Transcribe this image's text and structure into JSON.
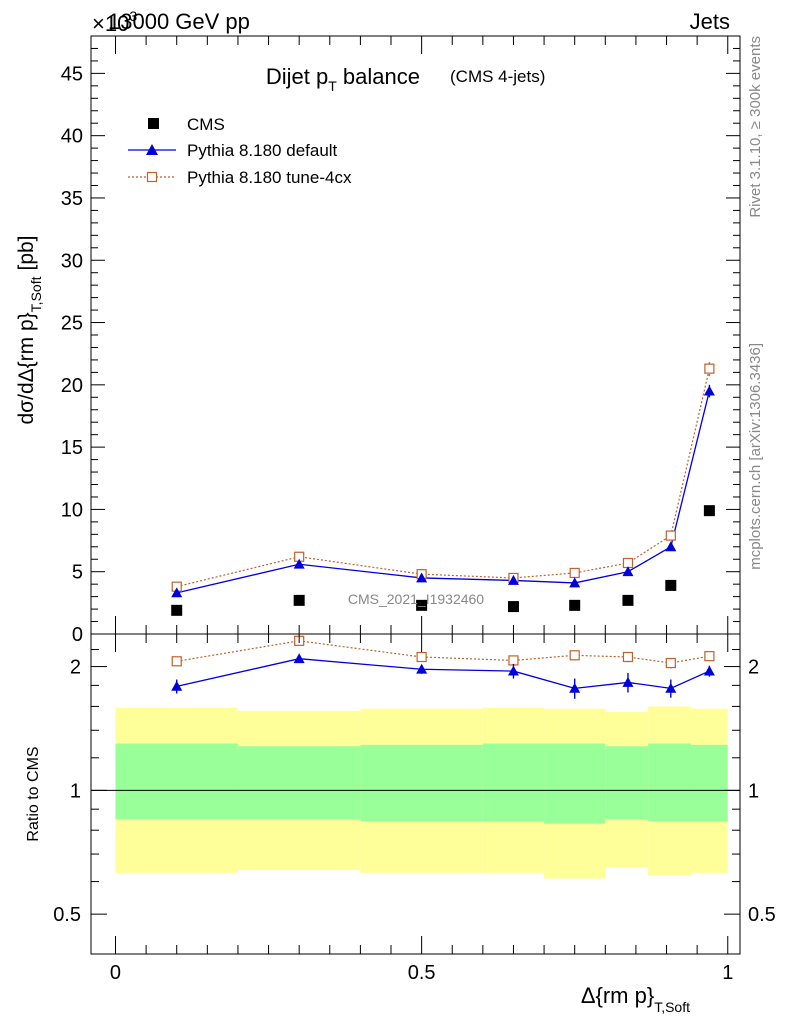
{
  "header": {
    "energy_label": "13000 GeV pp",
    "category_label": "Jets",
    "scale_label": "×10",
    "scale_exponent": "3"
  },
  "side_labels": {
    "rivet": "Rivet 3.1.10, ≥ 300k events",
    "mcplots": "mcplots.cern.ch [arXiv:1306.3436]"
  },
  "chart_data": [
    {
      "type": "scatter",
      "title_main": "Dijet p",
      "title_sub": "T",
      "title_rest": " balance",
      "title_note": "(CMS 4-jets)",
      "watermark": "CMS_2021_I1932460",
      "ylabel_main": "dσ/dΔ{rm p}",
      "ylabel_sub": "T,Soft",
      "ylabel_unit": "[pb]",
      "xlim": [
        -0.04,
        1.02
      ],
      "ylim": [
        0,
        48
      ],
      "yticks": [
        0,
        5,
        10,
        15,
        20,
        25,
        30,
        35,
        40,
        45
      ],
      "legend_position": "top-left",
      "x": [
        0.1,
        0.3,
        0.5,
        0.65,
        0.75,
        0.837,
        0.907,
        0.97
      ],
      "series": [
        {
          "name": "CMS",
          "style": "marker",
          "marker": "square",
          "color": "#000000",
          "values": [
            1.9,
            2.7,
            2.3,
            2.2,
            2.3,
            2.7,
            3.9,
            9.9
          ]
        },
        {
          "name": "Pythia 8.180 default",
          "style": "line",
          "marker": "triangle",
          "color": "#0000dd",
          "values": [
            3.3,
            5.6,
            4.5,
            4.3,
            4.1,
            5.0,
            7.0,
            19.5
          ],
          "errors": [
            0.15,
            0.15,
            0.15,
            0.15,
            0.15,
            0.2,
            0.25,
            0.5
          ]
        },
        {
          "name": "Pythia 8.180 tune-4cx",
          "style": "dotted",
          "marker": "open-square",
          "color": "#c0622d",
          "values": [
            3.8,
            6.2,
            4.8,
            4.5,
            4.9,
            5.7,
            7.9,
            21.3
          ],
          "errors": [
            0.15,
            0.15,
            0.15,
            0.15,
            0.15,
            0.2,
            0.3,
            0.6
          ]
        }
      ]
    },
    {
      "type": "scatter",
      "ylabel": "Ratio to CMS",
      "xlabel_main": "Δ{rm p}",
      "xlabel_sub": "T,Soft",
      "log_y": true,
      "ylim": [
        0.4,
        2.4
      ],
      "yticks": [
        0.5,
        1,
        2
      ],
      "ytick_labels": [
        "0.5",
        "1",
        "2"
      ],
      "xticks": [
        0,
        0.5,
        1
      ],
      "xtick_labels": [
        "0",
        "0.5",
        "1"
      ],
      "reference_line": 1,
      "bin_edges": [
        0,
        0.2,
        0.4,
        0.6,
        0.7,
        0.8,
        0.87,
        0.94,
        1.0
      ],
      "bands": {
        "yellow": {
          "color": "#ffff99",
          "lower": [
            0.63,
            0.64,
            0.63,
            0.63,
            0.61,
            0.65,
            0.62,
            0.63
          ],
          "upper": [
            1.59,
            1.56,
            1.58,
            1.59,
            1.58,
            1.55,
            1.6,
            1.58
          ]
        },
        "green": {
          "color": "#99ff99",
          "lower": [
            0.85,
            0.85,
            0.84,
            0.84,
            0.83,
            0.85,
            0.84,
            0.84
          ],
          "upper": [
            1.3,
            1.28,
            1.29,
            1.3,
            1.3,
            1.28,
            1.3,
            1.29
          ]
        }
      },
      "x": [
        0.1,
        0.3,
        0.5,
        0.65,
        0.75,
        0.837,
        0.907,
        0.97
      ],
      "series": [
        {
          "name": "Pythia 8.180 default",
          "style": "line",
          "marker": "triangle",
          "color": "#0000dd",
          "values": [
            1.79,
            2.09,
            1.97,
            1.95,
            1.77,
            1.83,
            1.77,
            1.95
          ],
          "errors": [
            0.07,
            0.05,
            0.05,
            0.08,
            0.1,
            0.1,
            0.09,
            0.06
          ]
        },
        {
          "name": "Pythia 8.180 tune-4cx",
          "style": "dotted",
          "marker": "open-square",
          "color": "#c0622d",
          "values": [
            2.06,
            2.31,
            2.11,
            2.07,
            2.13,
            2.11,
            2.04,
            2.12
          ],
          "errors": [
            0.05,
            0.05,
            0.04,
            0.05,
            0.06,
            0.06,
            0.06,
            0.05
          ]
        }
      ]
    }
  ]
}
